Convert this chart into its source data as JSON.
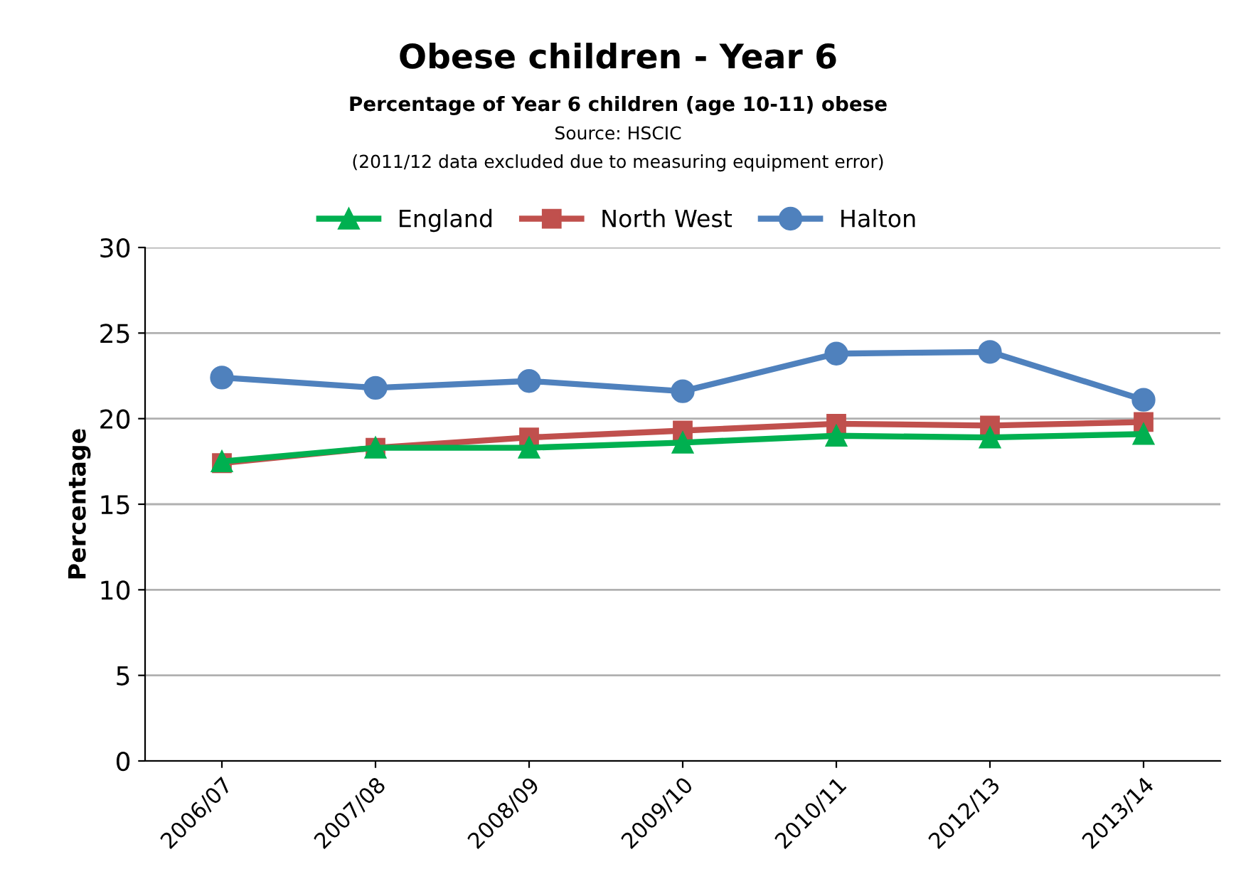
{
  "chart_data": {
    "type": "line",
    "title": "Obese children - Year 6",
    "subtitle": "Percentage of Year 6 children (age 10-11) obese",
    "annotations": [
      "Source: HSCIC",
      "(2011/12 data excluded due to measuring equipment error)"
    ],
    "ylabel": "Percentage",
    "categories": [
      "2006/07",
      "2007/08",
      "2008/09",
      "2009/10",
      "2010/11",
      "2012/13",
      "2013/14"
    ],
    "series": [
      {
        "name": "England",
        "color": "#00b050",
        "marker": "triangle",
        "values": [
          17.5,
          18.3,
          18.3,
          18.6,
          19.0,
          18.9,
          19.1
        ]
      },
      {
        "name": "North West",
        "color": "#c0504d",
        "marker": "square",
        "values": [
          17.4,
          18.3,
          18.9,
          19.3,
          19.7,
          19.6,
          19.8
        ]
      },
      {
        "name": "Halton",
        "color": "#4f81bd",
        "marker": "circle",
        "values": [
          22.4,
          21.8,
          22.2,
          21.6,
          23.8,
          23.9,
          21.1
        ]
      }
    ],
    "ylim": [
      0,
      30
    ],
    "yticks": [
      0,
      5,
      10,
      15,
      20,
      25,
      30
    ],
    "grid": "y",
    "legend": "top"
  }
}
